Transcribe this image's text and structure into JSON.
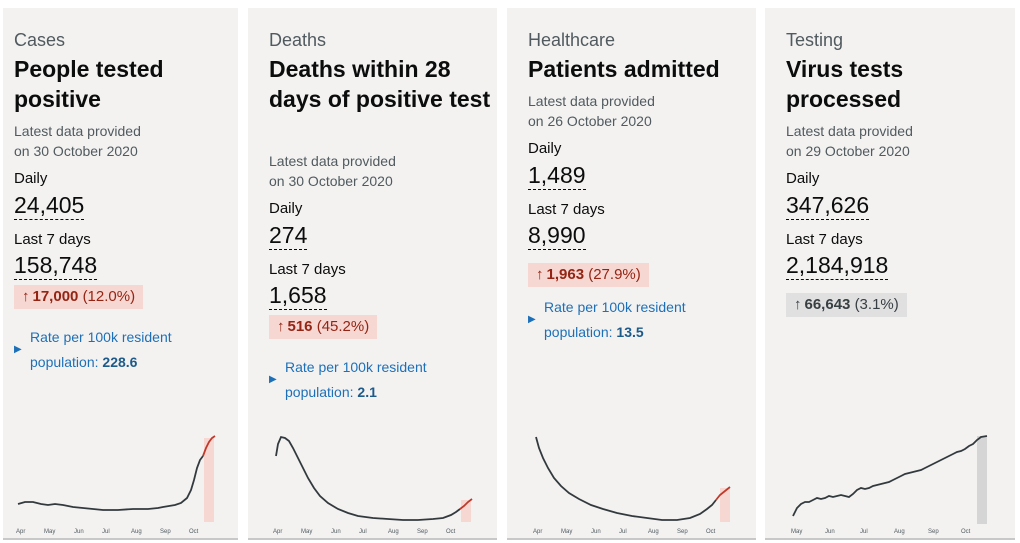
{
  "cards": [
    {
      "caption": "Cases",
      "title": "People tested positive",
      "meta": "Latest data provided on 30 October 2020",
      "daily_label": "Daily",
      "daily_value": "24,405",
      "week_label": "Last 7 days",
      "week_value": "158,748",
      "change_value": "17,000",
      "change_pct": "(12.0%)",
      "change_direction": "up",
      "rate_text": "Rate per 100k resident population:",
      "rate_value": "228.6",
      "chart_ticks": [
        "Apr",
        "May",
        "Jun",
        "Jul",
        "Aug",
        "Sep",
        "Oct"
      ]
    },
    {
      "caption": "Deaths",
      "title": "Deaths within 28 days of positive test",
      "meta": "Latest data provided on 30 October 2020",
      "daily_label": "Daily",
      "daily_value": "274",
      "week_label": "Last 7 days",
      "week_value": "1,658",
      "change_value": "516",
      "change_pct": "(45.2%)",
      "change_direction": "up",
      "rate_text": "Rate per 100k resident population:",
      "rate_value": "2.1",
      "chart_ticks": [
        "Apr",
        "May",
        "Jun",
        "Jul",
        "Aug",
        "Sep",
        "Oct"
      ]
    },
    {
      "caption": "Healthcare",
      "title": "Patients admitted",
      "meta": "Latest data provided on 26 October 2020",
      "daily_label": "Daily",
      "daily_value": "1,489",
      "week_label": "Last 7 days",
      "week_value": "8,990",
      "change_value": "1,963",
      "change_pct": "(27.9%)",
      "change_direction": "up",
      "rate_text": "Rate per 100k resident population:",
      "rate_value": "13.5",
      "chart_ticks": [
        "Apr",
        "May",
        "Jun",
        "Jul",
        "Aug",
        "Sep",
        "Oct"
      ]
    },
    {
      "caption": "Testing",
      "title": "Virus tests processed",
      "meta": "Latest data provided on 29 October 2020",
      "daily_label": "Daily",
      "daily_value": "347,626",
      "week_label": "Last 7 days",
      "week_value": "2,184,918",
      "change_value": "66,643",
      "change_pct": "(3.1%)",
      "change_direction": "neutral",
      "chart_ticks": [
        "May",
        "Jun",
        "Jul",
        "Aug",
        "Sep",
        "Oct"
      ]
    }
  ],
  "icons": {
    "arrow": "arrow-up-icon",
    "expander": "triangle-right-icon"
  },
  "colors": {
    "card_bg": "#f3f2f1",
    "increase_bg": "#f6d7d2",
    "increase_text": "#942514",
    "neutral_bg": "#e0e0e0",
    "link_blue": "#1d70b8",
    "line_dark": "#0b0c0c",
    "line_recent_red": "#c0392b"
  }
}
